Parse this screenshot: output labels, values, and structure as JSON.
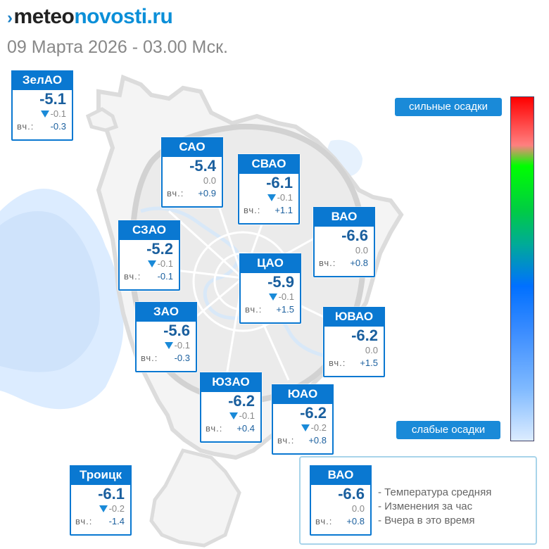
{
  "header": {
    "logo_prefix": "meteo",
    "logo_suffix": "novosti.ru",
    "date": "09 Марта 2026 - 03.00 Мск."
  },
  "districts": [
    {
      "name": "ЗелАО",
      "temp": "-5.1",
      "change": "-0.1",
      "change_dir": "down",
      "yesterday_label": "вч.:",
      "yesterday": "-0.3"
    },
    {
      "name": "САО",
      "temp": "-5.4",
      "change": "0.0",
      "change_dir": "none",
      "yesterday_label": "вч.:",
      "yesterday": "+0.9"
    },
    {
      "name": "СВАО",
      "temp": "-6.1",
      "change": "-0.1",
      "change_dir": "down",
      "yesterday_label": "вч.:",
      "yesterday": "+1.1"
    },
    {
      "name": "ВАО",
      "temp": "-6.6",
      "change": "0.0",
      "change_dir": "none",
      "yesterday_label": "вч.:",
      "yesterday": "+0.8"
    },
    {
      "name": "СЗАО",
      "temp": "-5.2",
      "change": "-0.1",
      "change_dir": "down",
      "yesterday_label": "вч.:",
      "yesterday": "-0.1"
    },
    {
      "name": "ЦАО",
      "temp": "-5.9",
      "change": "-0.1",
      "change_dir": "down",
      "yesterday_label": "вч.:",
      "yesterday": "+1.5"
    },
    {
      "name": "ЗАО",
      "temp": "-5.6",
      "change": "-0.1",
      "change_dir": "down",
      "yesterday_label": "вч.:",
      "yesterday": "-0.3"
    },
    {
      "name": "ЮВАО",
      "temp": "-6.2",
      "change": "0.0",
      "change_dir": "none",
      "yesterday_label": "вч.:",
      "yesterday": "+1.5"
    },
    {
      "name": "ЮЗАО",
      "temp": "-6.2",
      "change": "-0.1",
      "change_dir": "down",
      "yesterday_label": "вч.:",
      "yesterday": "+0.4"
    },
    {
      "name": "ЮАО",
      "temp": "-6.2",
      "change": "-0.2",
      "change_dir": "down",
      "yesterday_label": "вч.:",
      "yesterday": "+0.8"
    },
    {
      "name": "Троицк",
      "temp": "-6.1",
      "change": "-0.2",
      "change_dir": "down",
      "yesterday_label": "вч.:",
      "yesterday": "-1.4"
    }
  ],
  "precip_scale": {
    "high_label": "сильные осадки",
    "low_label": "слабые осадки",
    "gradient_colors": [
      "#ff0000",
      "#ff8080",
      "#00ff00",
      "#00aa99",
      "#0070ff",
      "#80baff",
      "#dcecff"
    ]
  },
  "legend": {
    "sample": {
      "name": "ВАО",
      "temp": "-6.6",
      "change": "0.0",
      "change_dir": "none",
      "yesterday_label": "вч.:",
      "yesterday": "+0.8"
    },
    "items": [
      "- Температура средняя",
      "- Изменения за час",
      "- Вчера в это время"
    ]
  },
  "colors": {
    "card_accent": "#0a78d1",
    "temp_text": "#1a5f9e",
    "precip_light": "#dcecff"
  }
}
